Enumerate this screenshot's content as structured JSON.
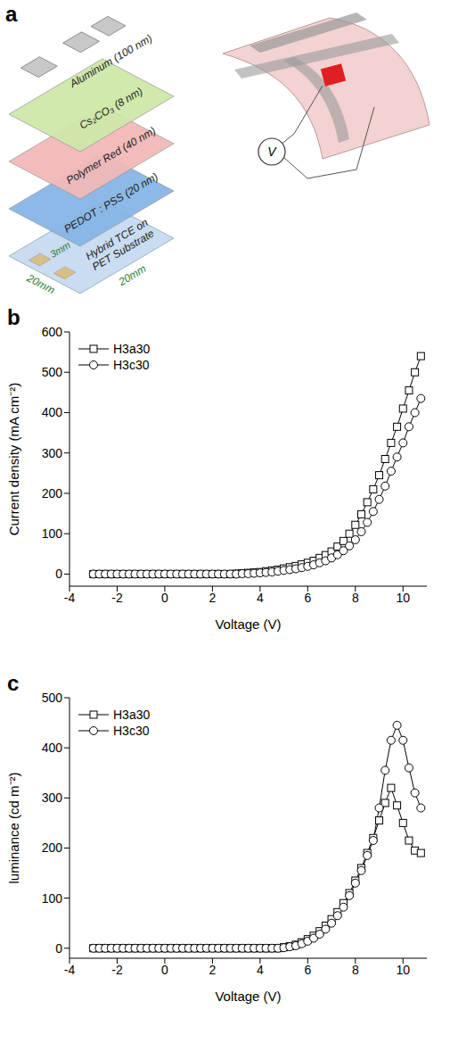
{
  "diagram": {
    "panel": "a",
    "layers": [
      "Aluminum (100 nm)",
      "Cs₂CO₃ (8 nm)",
      "Polymer Red (40 nm)",
      "PEDOT : PSS (20 nm)"
    ],
    "substrate": [
      "Hybrid TCE on",
      "PET Substrate"
    ],
    "pad_width": "3mm",
    "substrate_width": "20mm",
    "substrate_depth": "20mm",
    "meter": "V"
  },
  "chart_data": [
    {
      "panel": "b",
      "type": "line",
      "xlabel": "Voltage (V)",
      "ylabel": "Current density (mA cm⁻²)",
      "x": [
        -3,
        -2.75,
        -2.5,
        -2.25,
        -2,
        -1.75,
        -1.5,
        -1.25,
        -1,
        -0.75,
        -0.5,
        -0.25,
        0,
        0.25,
        0.5,
        0.75,
        1,
        1.25,
        1.5,
        1.75,
        2,
        2.25,
        2.5,
        2.75,
        3,
        3.25,
        3.5,
        3.75,
        4,
        4.25,
        4.5,
        4.75,
        5,
        5.25,
        5.5,
        5.75,
        6,
        6.25,
        6.5,
        6.75,
        7,
        7.25,
        7.5,
        7.75,
        8,
        8.25,
        8.5,
        8.75,
        9,
        9.25,
        9.5,
        9.75,
        10,
        10.25,
        10.5,
        10.75
      ],
      "series": [
        {
          "name": "H3a30",
          "color": "#000000",
          "marker": "square",
          "values": [
            0,
            0,
            0,
            0,
            0,
            0,
            0,
            0,
            0,
            0,
            0,
            0,
            0,
            0,
            0,
            0,
            0,
            0,
            0,
            0,
            0,
            0,
            0,
            0,
            1,
            2,
            3,
            4,
            5,
            7,
            9,
            11,
            14,
            17,
            20,
            24,
            28,
            33,
            40,
            47,
            56,
            68,
            82,
            100,
            122,
            148,
            178,
            210,
            245,
            285,
            325,
            365,
            410,
            455,
            500,
            540
          ]
        },
        {
          "name": "H3c30",
          "color": "#000000",
          "marker": "circle",
          "values": [
            0,
            0,
            0,
            0,
            0,
            0,
            0,
            0,
            0,
            0,
            0,
            0,
            0,
            0,
            0,
            0,
            0,
            0,
            0,
            0,
            0,
            0,
            0,
            0,
            0,
            1,
            1,
            2,
            3,
            4,
            5,
            7,
            9,
            11,
            13,
            16,
            19,
            23,
            28,
            33,
            40,
            48,
            58,
            70,
            85,
            105,
            128,
            155,
            185,
            218,
            255,
            290,
            325,
            365,
            400,
            435
          ]
        }
      ],
      "xlim": [
        -4,
        11
      ],
      "ylim": [
        -30,
        600
      ],
      "xticks": [
        -4,
        -2,
        0,
        2,
        4,
        6,
        8,
        10
      ],
      "yticks": [
        0,
        100,
        200,
        300,
        400,
        500,
        600
      ],
      "legend": "upper left",
      "grid": false
    },
    {
      "panel": "c",
      "type": "line",
      "xlabel": "Voltage (V)",
      "ylabel": "luminance (cd m⁻²)",
      "x": [
        -3,
        -2.75,
        -2.5,
        -2.25,
        -2,
        -1.75,
        -1.5,
        -1.25,
        -1,
        -0.75,
        -0.5,
        -0.25,
        0,
        0.25,
        0.5,
        0.75,
        1,
        1.25,
        1.5,
        1.75,
        2,
        2.25,
        2.5,
        2.75,
        3,
        3.25,
        3.5,
        3.75,
        4,
        4.25,
        4.5,
        4.75,
        5,
        5.25,
        5.5,
        5.75,
        6,
        6.25,
        6.5,
        6.75,
        7,
        7.25,
        7.5,
        7.75,
        8,
        8.25,
        8.5,
        8.75,
        9,
        9.25,
        9.5,
        9.75,
        10,
        10.25,
        10.5,
        10.75
      ],
      "series": [
        {
          "name": "H3a30",
          "color": "#000000",
          "marker": "square",
          "values": [
            0,
            0,
            0,
            0,
            0,
            0,
            0,
            0,
            0,
            0,
            0,
            0,
            0,
            0,
            0,
            0,
            0,
            0,
            0,
            0,
            0,
            0,
            0,
            0,
            0,
            0,
            0,
            0,
            0,
            0,
            0,
            0,
            2,
            4,
            7,
            12,
            18,
            25,
            34,
            45,
            58,
            72,
            90,
            110,
            135,
            160,
            190,
            220,
            255,
            290,
            320,
            285,
            250,
            215,
            195,
            190
          ]
        },
        {
          "name": "H3c30",
          "color": "#000000",
          "marker": "circle",
          "values": [
            0,
            0,
            0,
            0,
            0,
            0,
            0,
            0,
            0,
            0,
            0,
            0,
            0,
            0,
            0,
            0,
            0,
            0,
            0,
            0,
            0,
            0,
            0,
            0,
            0,
            0,
            0,
            0,
            0,
            0,
            0,
            0,
            1,
            3,
            5,
            9,
            14,
            20,
            28,
            38,
            50,
            65,
            82,
            105,
            130,
            155,
            185,
            215,
            280,
            355,
            415,
            445,
            415,
            360,
            310,
            280
          ]
        }
      ],
      "xlim": [
        -4,
        11
      ],
      "ylim": [
        -20,
        500
      ],
      "xticks": [
        -4,
        -2,
        0,
        2,
        4,
        6,
        8,
        10
      ],
      "yticks": [
        0,
        100,
        200,
        300,
        400,
        500
      ],
      "legend": "upper left",
      "grid": false
    }
  ]
}
